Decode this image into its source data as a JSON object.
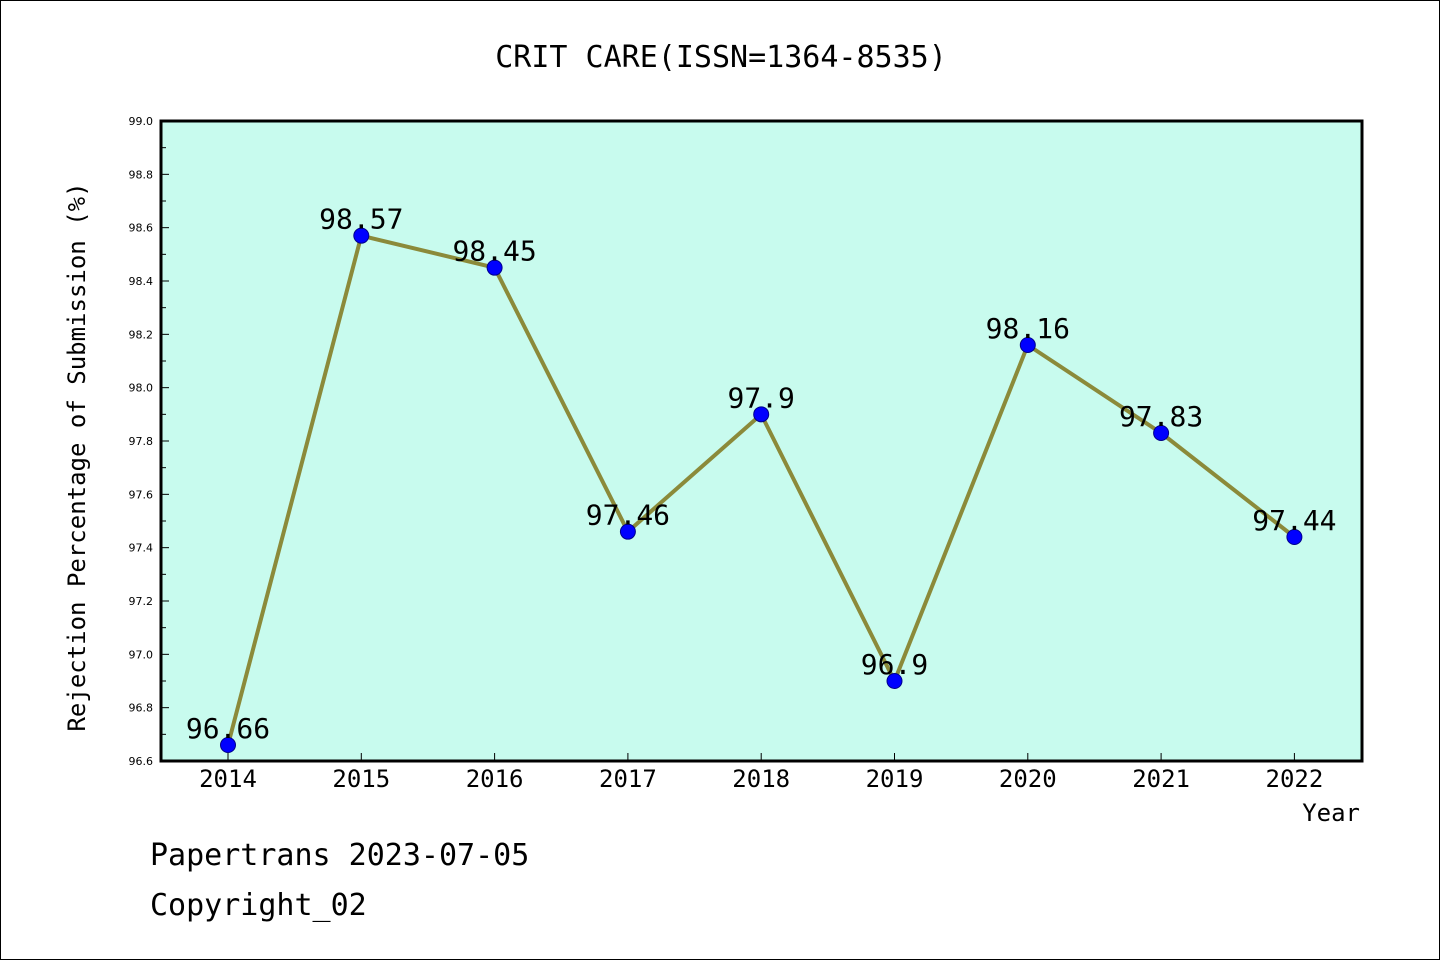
{
  "footer": {
    "line1": "Papertrans 2023-07-05",
    "line2": "Copyright_02"
  },
  "colors": {
    "plot_background": "#c8fbee",
    "line": "#8b8a3a",
    "marker": "#0000ff",
    "axis": "#000000"
  },
  "chart_data": {
    "type": "line",
    "title": "CRIT CARE(ISSN=1364-8535)",
    "xlabel": "Year",
    "ylabel": "Rejection Percentage of Submission (%)",
    "ylim": [
      96.6,
      99.0
    ],
    "yticks": [
      "96.6",
      "96.8",
      "97.0",
      "97.2",
      "97.4",
      "97.6",
      "97.8",
      "98.0",
      "98.2",
      "98.4",
      "98.6",
      "98.8",
      "99.0"
    ],
    "grid": false,
    "categories": [
      "2014",
      "2015",
      "2016",
      "2017",
      "2018",
      "2019",
      "2020",
      "2021",
      "2022"
    ],
    "series": [
      {
        "values": [
          96.66,
          98.57,
          98.45,
          97.46,
          97.9,
          96.9,
          98.16,
          97.83,
          97.44
        ],
        "labels": [
          "96.66",
          "98.57",
          "98.45",
          "97.46",
          "97.9",
          "96.9",
          "98.16",
          "97.83",
          "97.44"
        ]
      }
    ]
  }
}
